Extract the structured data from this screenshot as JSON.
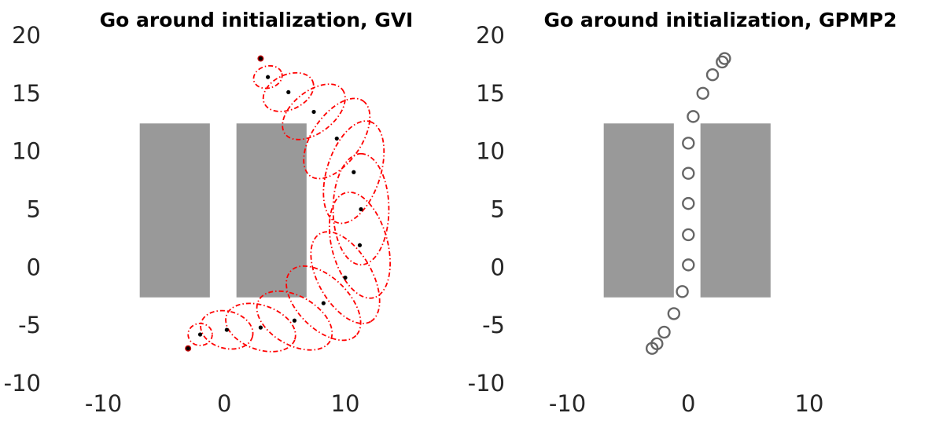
{
  "chart_data": [
    {
      "type": "scatter",
      "title": "Go around initialization, GVI",
      "xlabel": "",
      "ylabel": "",
      "xlim": [
        -15.5,
        18
      ],
      "ylim": [
        -10,
        20
      ],
      "x_ticks": [
        "-10",
        "0",
        "10"
      ],
      "y_ticks": [
        "20",
        "15",
        "10",
        "5",
        "0",
        "-5",
        "-10"
      ],
      "x_tick_values": [
        -10,
        0,
        10
      ],
      "y_tick_values": [
        20,
        15,
        10,
        5,
        0,
        -5,
        -10
      ],
      "grid": false,
      "obstacle_color": "#999999",
      "obstacles": [
        {
          "x0": -7,
          "x1": -1.2,
          "y0": -2.6,
          "y1": 12.4
        },
        {
          "x0": 1,
          "x1": 6.8,
          "y0": -2.6,
          "y1": 12.4
        }
      ],
      "mean_color": "#000000",
      "covariance_color": "#ff0000",
      "endpoint_color": "#c00000",
      "points": [
        {
          "x": -3,
          "y": -7,
          "rx": 0.25,
          "ry": 0.25,
          "angle": 0
        },
        {
          "x": -2,
          "y": -5.8,
          "rx": 1.0,
          "ry": 0.95,
          "angle": 0
        },
        {
          "x": 0.2,
          "y": -5.4,
          "rx": 2.2,
          "ry": 1.6,
          "angle": -15
        },
        {
          "x": 3.0,
          "y": -5.2,
          "rx": 3.0,
          "ry": 1.9,
          "angle": -20
        },
        {
          "x": 5.8,
          "y": -4.6,
          "rx": 3.4,
          "ry": 2.1,
          "angle": -30
        },
        {
          "x": 8.2,
          "y": -3.1,
          "rx": 3.8,
          "ry": 2.2,
          "angle": -45
        },
        {
          "x": 10.0,
          "y": -0.9,
          "rx": 4.2,
          "ry": 2.3,
          "angle": -60
        },
        {
          "x": 11.2,
          "y": 1.9,
          "rx": 4.5,
          "ry": 2.4,
          "angle": -75
        },
        {
          "x": 11.3,
          "y": 5.0,
          "rx": 4.6,
          "ry": 2.4,
          "angle": 90
        },
        {
          "x": 10.7,
          "y": 8.2,
          "rx": 4.4,
          "ry": 2.3,
          "angle": 72
        },
        {
          "x": 9.3,
          "y": 11.1,
          "rx": 3.8,
          "ry": 2.1,
          "angle": 55
        },
        {
          "x": 7.4,
          "y": 13.4,
          "rx": 3.0,
          "ry": 1.8,
          "angle": 38
        },
        {
          "x": 5.3,
          "y": 15.1,
          "rx": 2.2,
          "ry": 1.5,
          "angle": 25
        },
        {
          "x": 3.6,
          "y": 16.4,
          "rx": 1.2,
          "ry": 0.95,
          "angle": 15
        },
        {
          "x": 3.0,
          "y": 18.0,
          "rx": 0.25,
          "ry": 0.25,
          "angle": 0
        }
      ]
    },
    {
      "type": "scatter",
      "title": "Go around initialization, GPMP2",
      "xlabel": "",
      "ylabel": "",
      "xlim": [
        -15.5,
        18
      ],
      "ylim": [
        -10,
        20
      ],
      "x_ticks": [
        "-10",
        "0",
        "10"
      ],
      "y_ticks": [
        "20",
        "15",
        "10",
        "5",
        "0",
        "-5",
        "-10"
      ],
      "x_tick_values": [
        -10,
        0,
        10
      ],
      "y_tick_values": [
        20,
        15,
        10,
        5,
        0,
        -5,
        -10
      ],
      "grid": false,
      "obstacle_color": "#999999",
      "obstacles": [
        {
          "x0": -7,
          "x1": -1.2,
          "y0": -2.6,
          "y1": 12.4
        },
        {
          "x0": 1,
          "x1": 6.8,
          "y0": -2.6,
          "y1": 12.4
        }
      ],
      "marker_color": "#666666",
      "points": [
        {
          "x": -3.0,
          "y": -7.0
        },
        {
          "x": -2.6,
          "y": -6.6
        },
        {
          "x": -2.0,
          "y": -5.6
        },
        {
          "x": -1.2,
          "y": -4.0
        },
        {
          "x": -0.5,
          "y": -2.1
        },
        {
          "x": 0.0,
          "y": 0.2
        },
        {
          "x": 0.0,
          "y": 2.8
        },
        {
          "x": 0.0,
          "y": 5.5
        },
        {
          "x": 0.0,
          "y": 8.1
        },
        {
          "x": 0.0,
          "y": 10.7
        },
        {
          "x": 0.4,
          "y": 13.0
        },
        {
          "x": 1.2,
          "y": 15.0
        },
        {
          "x": 2.0,
          "y": 16.6
        },
        {
          "x": 2.8,
          "y": 17.7
        },
        {
          "x": 3.0,
          "y": 18.0
        }
      ]
    }
  ]
}
